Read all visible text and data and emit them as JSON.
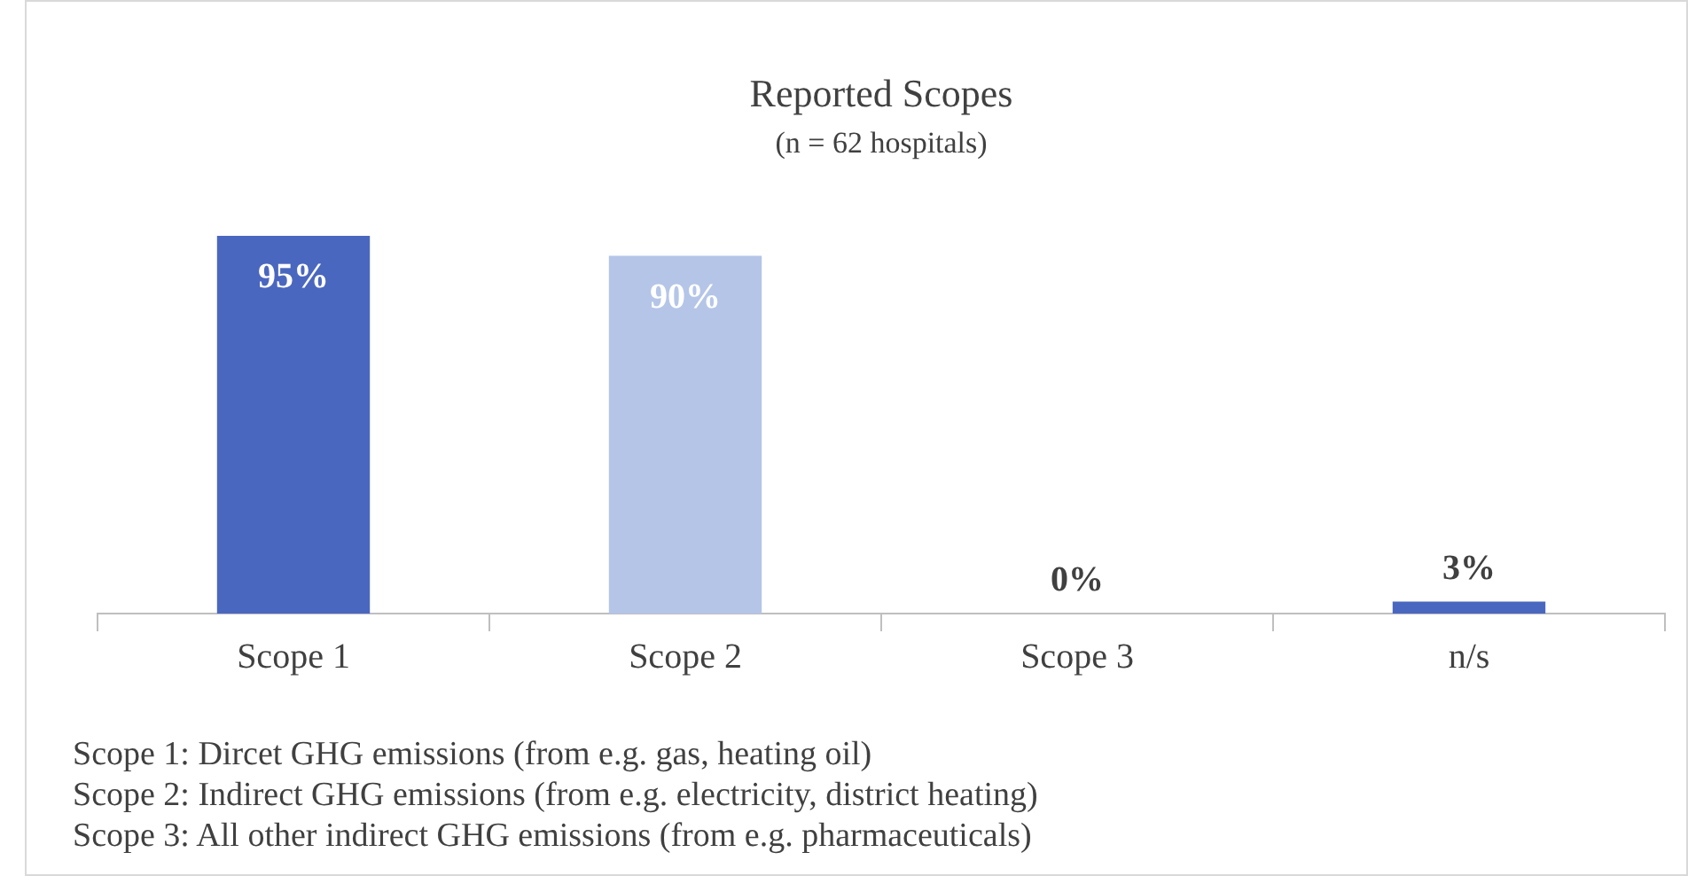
{
  "chart_data": {
    "type": "bar",
    "title": "Reported Scopes",
    "subtitle": "(n = 62 hospitals)",
    "categories": [
      "Scope 1",
      "Scope 2",
      "Scope 3",
      "n/s"
    ],
    "values": [
      95,
      90,
      0,
      3
    ],
    "colors": [
      "#4a67bf",
      "#b4c5e8",
      "#4a67bf",
      "#4a67bf"
    ],
    "value_labels": [
      "95%",
      "90%",
      "0%",
      "3%"
    ],
    "grid": false,
    "legend": false,
    "tick_labels": "x",
    "annotations": [
      "Scope 1: Dircet GHG emissions (from e.g. gas, heating oil)",
      "Scope 2: Indirect GHG emissions (from e.g. electricity, district heating)",
      "Scope 3: All other indirect GHG emissions (from e.g. pharmaceuticals)"
    ]
  }
}
